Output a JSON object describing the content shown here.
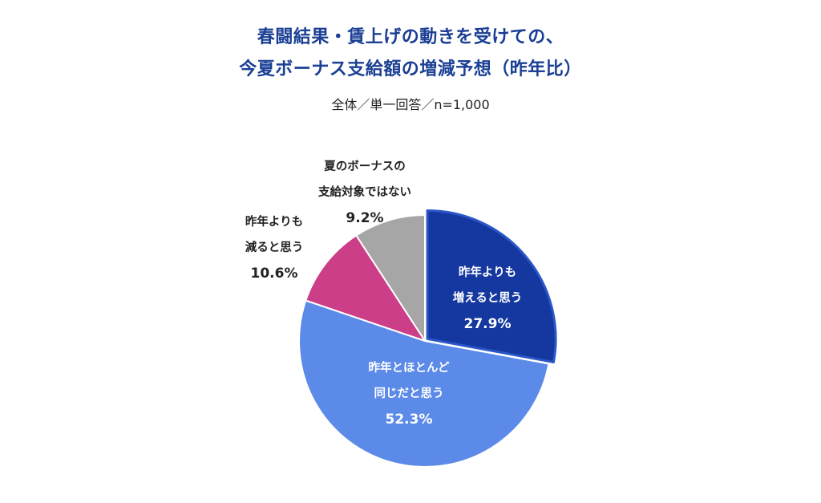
{
  "header": {
    "title_line1": "春闘結果・賃上げの動きを受けての、",
    "title_line2": "今夏ボーナス支給額の増減予想（昨年比）",
    "subtitle": "全体／単一回答／n=1,000"
  },
  "colors": {
    "title": "#1a3f94",
    "increase": "#14389f",
    "same": "#5b8ae8",
    "decrease": "#cc3f88",
    "not_applicable": "#a6a6a6"
  },
  "labels": {
    "increase": {
      "line1": "昨年よりも",
      "line2": "増えると思う",
      "pct": "27.9%"
    },
    "same": {
      "line1": "昨年とほとんど",
      "line2": "同じだと思う",
      "pct": "52.3%"
    },
    "decrease": {
      "line1": "昨年よりも",
      "line2": "減ると思う",
      "pct": "10.6%"
    },
    "not_applicable": {
      "line1": "夏のボーナスの",
      "line2": "支給対象ではない",
      "pct": "9.2%"
    }
  },
  "chart_data": {
    "type": "pie",
    "title": "春闘結果・賃上げの動きを受けての、今夏ボーナス支給額の増減予想（昨年比）",
    "subtitle": "全体／単一回答／n=1,000",
    "categories": [
      "昨年よりも増えると思う",
      "昨年とほとんど同じだと思う",
      "昨年よりも減ると思う",
      "夏のボーナスの支給対象ではない"
    ],
    "values": [
      27.9,
      52.3,
      10.6,
      9.2
    ],
    "unit": "%",
    "start_angle": "12 o'clock, clockwise",
    "highlighted_slice": "昨年よりも増えると思う",
    "legend": "none (direct labels)"
  }
}
